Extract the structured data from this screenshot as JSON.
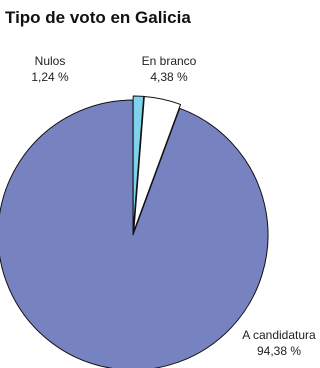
{
  "chart_data": {
    "type": "pie",
    "title": "Tipo de voto en Galicia",
    "slices": [
      {
        "label": "A candidatura",
        "value": 94.38,
        "value_text": "94,38 %",
        "color": "#7782c0",
        "exploded": false
      },
      {
        "label": "Nulos",
        "value": 1.24,
        "value_text": "1,24 %",
        "color": "#7ed3ec",
        "exploded": true
      },
      {
        "label": "En branco",
        "value": 4.38,
        "value_text": "4,38 %",
        "color": "#ffffff",
        "exploded": true
      }
    ],
    "stroke_color": "#111111"
  }
}
